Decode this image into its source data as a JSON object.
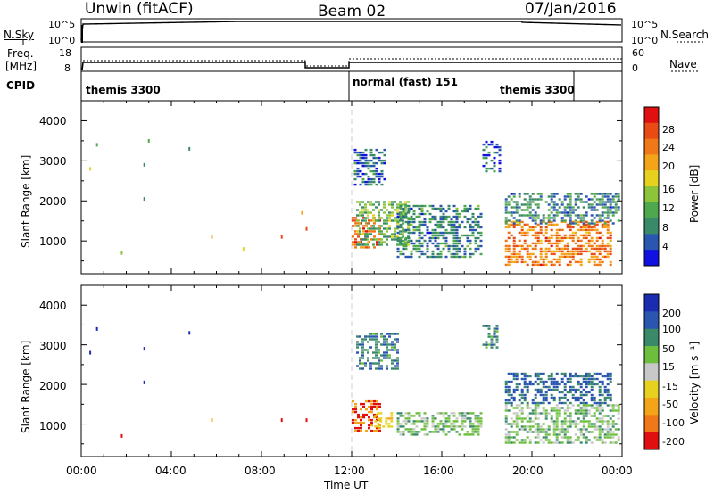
{
  "header": {
    "station": "Unwin (fitACF)",
    "beam": "Beam 02",
    "date": "07/Jan/2016"
  },
  "top_panels": {
    "nsky_label": "N.Sky",
    "nsearch_label": "N.Search",
    "freq_label_line1": "Freq.",
    "freq_label_line2": "[MHz]",
    "nave_label": "Nave",
    "cpid_label": "CPID",
    "left_ticks_noise": [
      "10^5",
      "10^0"
    ],
    "right_ticks_noise": [
      "10^5",
      "10^0"
    ],
    "left_ticks_freq": [
      "18",
      "8"
    ],
    "right_ticks_nave": [
      "60",
      "0"
    ],
    "cpid_segments": [
      "themis 3300",
      "normal (fast) 151",
      "themis 3300"
    ]
  },
  "axis": {
    "x_ticks": [
      "00:00",
      "04:00",
      "08:00",
      "12:00",
      "16:00",
      "20:00",
      "00:00"
    ],
    "x_label": "Time UT",
    "y_ticks": [
      "1000",
      "2000",
      "3000",
      "4000"
    ],
    "y_label": "Slant Range [km]"
  },
  "colorbars": {
    "power": {
      "label": "Power [dB]",
      "ticks": [
        "4",
        "8",
        "12",
        "16",
        "20",
        "24",
        "28"
      ],
      "colors": [
        "#1010e0",
        "#2a55b0",
        "#3a8a6a",
        "#4ea84e",
        "#8dc43a",
        "#e6d21e",
        "#f4a418",
        "#f07818",
        "#e84c14",
        "#e01010"
      ]
    },
    "velocity": {
      "label": "Velocity [m s⁻¹]",
      "ticks": [
        "200",
        "100",
        "50",
        "15",
        "-15",
        "-50",
        "-100",
        "-200"
      ],
      "colors": [
        "#1a2db0",
        "#2a55b0",
        "#3a8a6a",
        "#6cbe3c",
        "#c8c8c8",
        "#e6d21e",
        "#f4a418",
        "#f07818",
        "#e01010"
      ]
    }
  },
  "chart_data": [
    {
      "type": "heatmap",
      "title": "Beam 02",
      "quantity": "Power",
      "xlabel": "Time UT",
      "ylabel": "Slant Range [km]",
      "xlim": [
        0,
        24
      ],
      "ylim": [
        180,
        4500
      ],
      "clim": [
        0,
        32
      ],
      "x_units": "hours UT",
      "regions": [
        {
          "x": [
            12.0,
            13.2
          ],
          "y": [
            800,
            1600
          ],
          "value": 26
        },
        {
          "x": [
            12.2,
            14.5
          ],
          "y": [
            900,
            2000
          ],
          "value": 12
        },
        {
          "x": [
            14.0,
            17.8
          ],
          "y": [
            600,
            1900
          ],
          "value": 8
        },
        {
          "x": [
            17.8,
            18.6
          ],
          "y": [
            2700,
            3500
          ],
          "value": 6
        },
        {
          "x": [
            18.8,
            23.5
          ],
          "y": [
            400,
            1500
          ],
          "value": 24
        },
        {
          "x": [
            18.8,
            23.9
          ],
          "y": [
            1400,
            2200
          ],
          "value": 8
        },
        {
          "x": [
            12.1,
            13.5
          ],
          "y": [
            2400,
            3300
          ],
          "value": 6
        }
      ],
      "scatter": [
        {
          "x": 0.7,
          "y": 3400,
          "value": 10
        },
        {
          "x": 0.4,
          "y": 2800,
          "value": 18
        },
        {
          "x": 1.8,
          "y": 700,
          "value": 14
        },
        {
          "x": 2.8,
          "y": 2900,
          "value": 8
        },
        {
          "x": 2.8,
          "y": 2050,
          "value": 8
        },
        {
          "x": 3.0,
          "y": 3500,
          "value": 12
        },
        {
          "x": 4.8,
          "y": 3300,
          "value": 8
        },
        {
          "x": 5.8,
          "y": 1100,
          "value": 20
        },
        {
          "x": 7.2,
          "y": 800,
          "value": 18
        },
        {
          "x": 8.9,
          "y": 1100,
          "value": 28
        },
        {
          "x": 10.0,
          "y": 1300,
          "value": 26
        },
        {
          "x": 9.8,
          "y": 1700,
          "value": 20
        }
      ]
    },
    {
      "type": "heatmap",
      "title": "Beam 02",
      "quantity": "Velocity",
      "xlabel": "Time UT",
      "ylabel": "Slant Range [km]",
      "xlim": [
        0,
        24
      ],
      "ylim": [
        180,
        4500
      ],
      "clim": [
        -200,
        200
      ],
      "x_units": "hours UT",
      "regions": [
        {
          "x": [
            12.0,
            13.3
          ],
          "y": [
            800,
            1600
          ],
          "value": -200
        },
        {
          "x": [
            13.0,
            13.8
          ],
          "y": [
            900,
            1300
          ],
          "value": -80
        },
        {
          "x": [
            14.0,
            17.8
          ],
          "y": [
            700,
            1300
          ],
          "value": 0
        },
        {
          "x": [
            18.8,
            23.9
          ],
          "y": [
            500,
            1500
          ],
          "value": 0
        },
        {
          "x": [
            18.8,
            23.5
          ],
          "y": [
            1500,
            2300
          ],
          "value": 60
        },
        {
          "x": [
            12.2,
            14.0
          ],
          "y": [
            2400,
            3300
          ],
          "value": 40
        },
        {
          "x": [
            17.8,
            18.5
          ],
          "y": [
            2900,
            3500
          ],
          "value": 40
        }
      ],
      "scatter": [
        {
          "x": 0.7,
          "y": 3400,
          "value": 150
        },
        {
          "x": 0.4,
          "y": 2800,
          "value": 180
        },
        {
          "x": 1.8,
          "y": 700,
          "value": -200
        },
        {
          "x": 2.8,
          "y": 2900,
          "value": 150
        },
        {
          "x": 2.8,
          "y": 2050,
          "value": 150
        },
        {
          "x": 4.8,
          "y": 3300,
          "value": 150
        },
        {
          "x": 5.8,
          "y": 1100,
          "value": -150
        },
        {
          "x": 8.9,
          "y": 1100,
          "value": -200
        },
        {
          "x": 10.0,
          "y": 1100,
          "value": -200
        }
      ]
    }
  ]
}
